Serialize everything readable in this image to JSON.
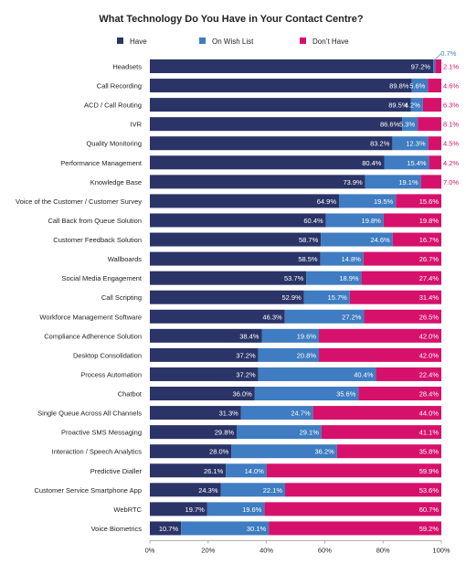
{
  "chart_data": {
    "type": "bar",
    "orientation": "horizontal",
    "stacked": true,
    "title": "What Technology Do You Have in Your Contact Centre?",
    "xlim": [
      0,
      100
    ],
    "x_ticks": [
      "0%",
      "20%",
      "40%",
      "60%",
      "80%",
      "100%"
    ],
    "legend_position": "top",
    "categories": [
      "Headsets",
      "Call Recording",
      "ACD / Call Routing",
      "IVR",
      "Quality Monitoring",
      "Performance Management",
      "Knowledge Base",
      "Voice of the Customer / Customer Survey",
      "Call Back from Queue Solution",
      "Customer Feedback Solution",
      "Wallboards",
      "Social Media Engagement",
      "Call Scripting",
      "Workforce Management Software",
      "Compliance Adherence Solution",
      "Desktop Consolidation",
      "Process Automation",
      "Chatbot",
      "Single Queue Across All Channels",
      "Proactive SMS Messaging",
      "Interaction / Speech Analytics",
      "Predictive Dialler",
      "Customer Service Smartphone App",
      "WebRTC",
      "Voice Biometrics"
    ],
    "series": [
      {
        "name": "Have",
        "color": "#2b3467",
        "values": [
          97.2,
          89.8,
          89.5,
          86.6,
          83.2,
          80.4,
          73.9,
          64.9,
          60.4,
          58.7,
          58.5,
          53.7,
          52.9,
          46.3,
          38.4,
          37.2,
          37.2,
          36.0,
          31.3,
          29.8,
          28.0,
          26.1,
          24.3,
          19.7,
          10.7
        ],
        "labels": [
          "97.2%",
          "89.8%",
          "89.5%",
          "86.6%",
          "83.2%",
          "80.4%",
          "73.9%",
          "64.9%",
          "60.4%",
          "58.7%",
          "58.5%",
          "53.7%",
          "52.9%",
          "46.3%",
          "38.4%",
          "37.2%",
          "37.2%",
          "36.0%",
          "31.3%",
          "29.8%",
          "28.0%",
          "26.1%",
          "24.3%",
          "19.7%",
          "10.7%"
        ]
      },
      {
        "name": "On Wish List",
        "color": "#3f7cc1",
        "values": [
          0.7,
          5.6,
          4.2,
          5.3,
          12.3,
          15.4,
          19.1,
          19.5,
          19.8,
          24.6,
          14.8,
          18.9,
          15.7,
          27.2,
          19.6,
          20.8,
          40.4,
          35.6,
          24.7,
          29.1,
          36.2,
          14.0,
          22.1,
          19.6,
          30.1
        ],
        "labels": [
          "0.7%",
          "5.6%",
          "4.2%",
          "5.3%",
          "12.3%",
          "15.4%",
          "19.1%",
          "19.5%",
          "19.8%",
          "24.6%",
          "14.8%",
          "18.9%",
          "15.7%",
          "27.2%",
          "19.6%",
          "20.8%",
          "40.4%",
          "35.6%",
          "24.7%",
          "29.1%",
          "36.2%",
          "14.0%",
          "22.1%",
          "19.6%",
          "30.1%"
        ]
      },
      {
        "name": "Don’t Have",
        "color": "#d6116c",
        "values": [
          2.1,
          4.6,
          6.3,
          8.1,
          4.5,
          4.2,
          7.0,
          15.6,
          19.8,
          16.7,
          26.7,
          27.4,
          31.4,
          26.5,
          42.0,
          42.0,
          22.4,
          28.4,
          44.0,
          41.1,
          35.8,
          59.9,
          53.6,
          60.7,
          59.2
        ],
        "labels": [
          "2.1%",
          "4.6%",
          "6.3%",
          "8.1%",
          "4.5%",
          "4.2%",
          "7.0%",
          "15.6%",
          "19.8%",
          "16.7%",
          "26.7%",
          "27.4%",
          "31.4%",
          "26.5%",
          "42.0%",
          "42.0%",
          "22.4%",
          "28.4%",
          "44.0%",
          "41.1%",
          "35.8%",
          "59.9%",
          "53.6%",
          "60.7%",
          "59.2%"
        ]
      }
    ]
  }
}
